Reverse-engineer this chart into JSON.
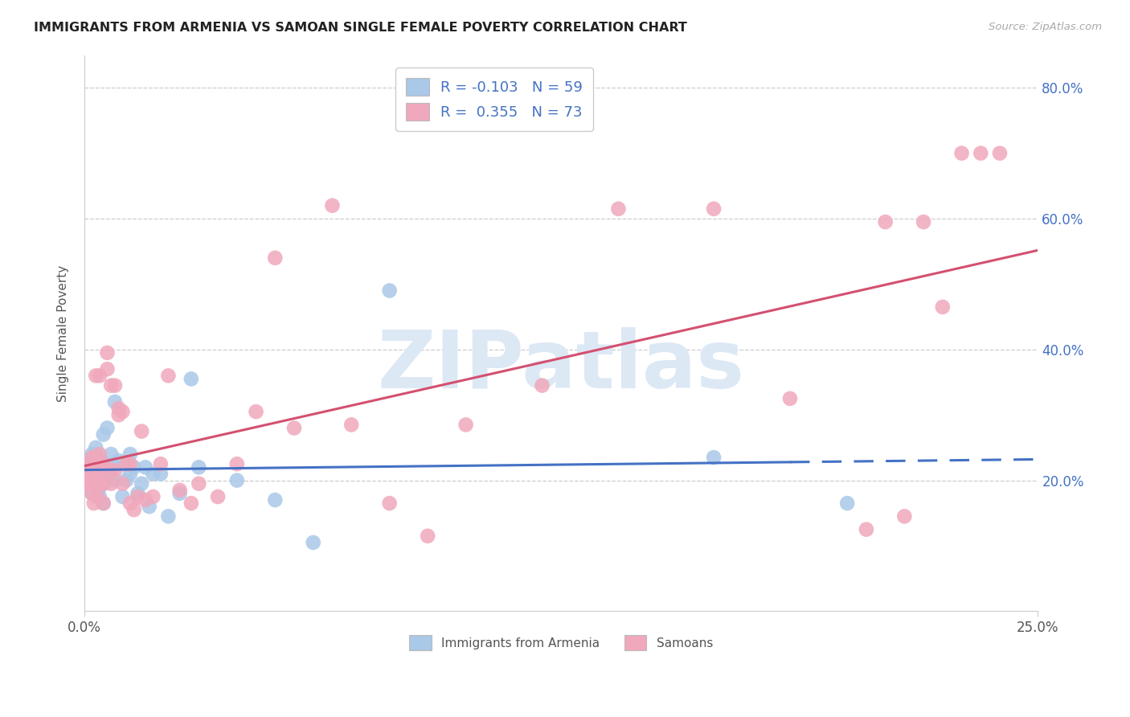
{
  "title": "IMMIGRANTS FROM ARMENIA VS SAMOAN SINGLE FEMALE POVERTY CORRELATION CHART",
  "source": "Source: ZipAtlas.com",
  "ylabel": "Single Female Poverty",
  "xmin": 0.0,
  "xmax": 0.25,
  "ymin": 0.0,
  "ymax": 0.85,
  "yticks": [
    0.2,
    0.4,
    0.6,
    0.8
  ],
  "ytick_labels": [
    "20.0%",
    "40.0%",
    "60.0%",
    "80.0%"
  ],
  "xticks": [
    0.0,
    0.25
  ],
  "xtick_labels": [
    "0.0%",
    "25.0%"
  ],
  "legend_labels_bottom": [
    "Immigrants from Armenia",
    "Samoans"
  ],
  "blue_dot_color": "#aac8e8",
  "pink_dot_color": "#f0a8bc",
  "blue_line_color": "#4472c4",
  "pink_line_color": "#d45070",
  "watermark_text": "ZIPatlas",
  "watermark_color": "#dde8f5",
  "blue_x": [
    0.0005,
    0.001,
    0.001,
    0.0015,
    0.0015,
    0.002,
    0.002,
    0.002,
    0.002,
    0.002,
    0.0025,
    0.0025,
    0.003,
    0.003,
    0.003,
    0.003,
    0.003,
    0.0035,
    0.0035,
    0.004,
    0.004,
    0.004,
    0.004,
    0.0045,
    0.005,
    0.005,
    0.005,
    0.005,
    0.0055,
    0.006,
    0.006,
    0.006,
    0.007,
    0.007,
    0.008,
    0.008,
    0.009,
    0.01,
    0.01,
    0.011,
    0.012,
    0.012,
    0.013,
    0.014,
    0.015,
    0.016,
    0.017,
    0.018,
    0.02,
    0.022,
    0.025,
    0.028,
    0.03,
    0.04,
    0.05,
    0.06,
    0.08,
    0.165,
    0.2
  ],
  "blue_y": [
    0.23,
    0.215,
    0.195,
    0.22,
    0.23,
    0.21,
    0.22,
    0.23,
    0.24,
    0.18,
    0.195,
    0.225,
    0.2,
    0.215,
    0.23,
    0.24,
    0.25,
    0.185,
    0.205,
    0.175,
    0.19,
    0.215,
    0.235,
    0.195,
    0.165,
    0.195,
    0.22,
    0.27,
    0.215,
    0.2,
    0.225,
    0.28,
    0.21,
    0.24,
    0.2,
    0.32,
    0.23,
    0.175,
    0.225,
    0.2,
    0.21,
    0.24,
    0.22,
    0.18,
    0.195,
    0.22,
    0.16,
    0.21,
    0.21,
    0.145,
    0.18,
    0.355,
    0.22,
    0.2,
    0.17,
    0.105,
    0.49,
    0.235,
    0.165
  ],
  "pink_x": [
    0.0004,
    0.0006,
    0.001,
    0.001,
    0.001,
    0.0015,
    0.0015,
    0.002,
    0.002,
    0.002,
    0.002,
    0.002,
    0.0025,
    0.003,
    0.003,
    0.003,
    0.003,
    0.003,
    0.0035,
    0.004,
    0.004,
    0.004,
    0.004,
    0.0045,
    0.005,
    0.005,
    0.005,
    0.006,
    0.006,
    0.007,
    0.007,
    0.007,
    0.008,
    0.008,
    0.009,
    0.009,
    0.01,
    0.01,
    0.011,
    0.012,
    0.012,
    0.013,
    0.014,
    0.015,
    0.016,
    0.018,
    0.02,
    0.022,
    0.025,
    0.028,
    0.03,
    0.035,
    0.04,
    0.045,
    0.05,
    0.055,
    0.065,
    0.07,
    0.08,
    0.09,
    0.1,
    0.12,
    0.14,
    0.165,
    0.185,
    0.205,
    0.21,
    0.215,
    0.22,
    0.225,
    0.23,
    0.235,
    0.24
  ],
  "pink_y": [
    0.22,
    0.215,
    0.195,
    0.21,
    0.225,
    0.195,
    0.215,
    0.18,
    0.195,
    0.215,
    0.225,
    0.235,
    0.165,
    0.195,
    0.215,
    0.225,
    0.235,
    0.36,
    0.175,
    0.195,
    0.22,
    0.24,
    0.36,
    0.215,
    0.165,
    0.195,
    0.225,
    0.395,
    0.37,
    0.195,
    0.345,
    0.215,
    0.215,
    0.345,
    0.3,
    0.31,
    0.195,
    0.305,
    0.225,
    0.165,
    0.225,
    0.155,
    0.175,
    0.275,
    0.17,
    0.175,
    0.225,
    0.36,
    0.185,
    0.165,
    0.195,
    0.175,
    0.225,
    0.305,
    0.54,
    0.28,
    0.62,
    0.285,
    0.165,
    0.115,
    0.285,
    0.345,
    0.615,
    0.615,
    0.325,
    0.125,
    0.595,
    0.145,
    0.595,
    0.465,
    0.7,
    0.7,
    0.7
  ]
}
